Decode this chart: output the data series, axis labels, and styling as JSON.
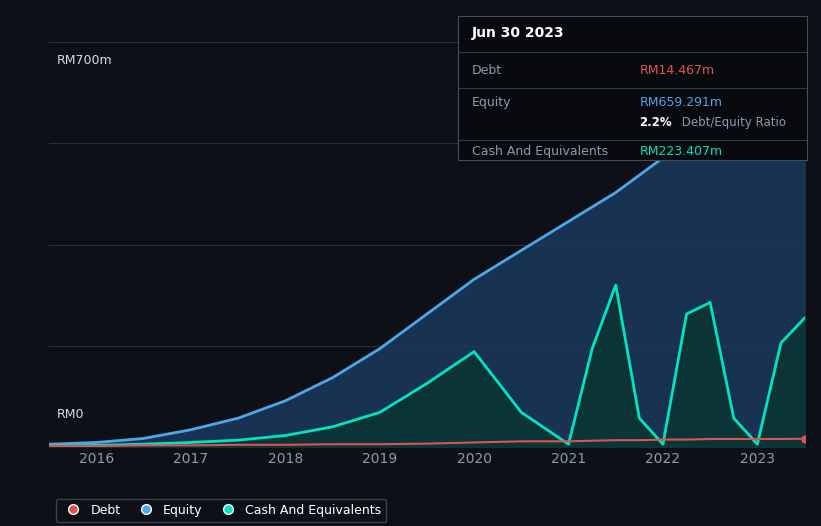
{
  "background_color": "#0d1117",
  "plot_bg_color": "#0d1117",
  "title_box": {
    "date": "Jun 30 2023",
    "debt_label": "Debt",
    "debt_value": "RM14.467m",
    "debt_color": "#e05252",
    "equity_label": "Equity",
    "equity_value": "RM659.291m",
    "equity_color": "#4da6e8",
    "ratio_bold": "2.2%",
    "ratio_text": " Debt/Equity Ratio",
    "cash_label": "Cash And Equivalents",
    "cash_value": "RM223.407m",
    "cash_color": "#00e5c0"
  },
  "ylabel_top": "RM700m",
  "ylabel_bottom": "RM0",
  "x_ticks": [
    "2016",
    "2017",
    "2018",
    "2019",
    "2020",
    "2021",
    "2022",
    "2023"
  ],
  "grid_color": "#2a3040",
  "equity_color": "#4da6e8",
  "equity_fill_color": "#1a3a5c",
  "debt_color": "#e05252",
  "cash_color": "#00e5c0",
  "cash_fill_color": "#0a3535",
  "years": [
    2015.5,
    2016.0,
    2016.5,
    2017.0,
    2017.5,
    2018.0,
    2018.5,
    2019.0,
    2019.5,
    2020.0,
    2020.5,
    2021.0,
    2021.25,
    2021.5,
    2021.75,
    2022.0,
    2022.25,
    2022.5,
    2022.75,
    2023.0,
    2023.25,
    2023.5
  ],
  "equity": [
    5,
    8,
    15,
    30,
    50,
    80,
    120,
    170,
    230,
    290,
    340,
    390,
    415,
    440,
    470,
    500,
    530,
    560,
    600,
    640,
    670,
    659
  ],
  "debt": [
    2,
    2,
    3,
    3,
    4,
    4,
    5,
    5,
    6,
    8,
    10,
    10,
    11,
    12,
    12,
    13,
    13,
    14,
    14,
    14,
    14,
    14.467
  ],
  "cash": [
    2,
    3,
    5,
    8,
    12,
    20,
    35,
    60,
    110,
    165,
    60,
    5,
    170,
    280,
    50,
    5,
    230,
    250,
    50,
    5,
    180,
    223
  ],
  "ylim": [
    0,
    700
  ],
  "legend_labels": [
    "Debt",
    "Equity",
    "Cash And Equivalents"
  ],
  "divider_color": "#333a48",
  "label_color": "#8a9bb0",
  "tick_color": "#8a9bb0",
  "ylabel_color": "#ccddee",
  "box_bg_color": "#080a0e",
  "box_edge_color": "#444d5c"
}
